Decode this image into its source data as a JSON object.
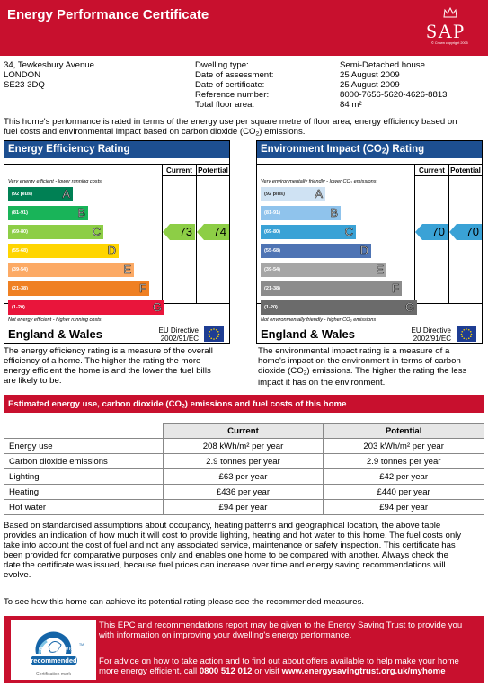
{
  "header": {
    "title": "Energy Performance Certificate",
    "logo_text": "SAP",
    "logo_copyright": "© Crown copyright 2005"
  },
  "property": {
    "address_lines": [
      "34, Tewkesbury Avenue",
      "LONDON",
      "SE23 3DQ"
    ],
    "fields": [
      {
        "label": "Dwelling type:",
        "value": "Semi-Detached house"
      },
      {
        "label": "Date of assessment:",
        "value": "25 August 2009"
      },
      {
        "label": "Date of certificate:",
        "value": "25 August 2009"
      },
      {
        "label": "Reference number:",
        "value": "8000-7656-5620-4626-8813"
      },
      {
        "label": "Total floor area:",
        "value": "84 m²"
      }
    ]
  },
  "intro": {
    "line1": "This home's performance is rated in terms of the energy use per square metre of floor area, energy efficiency based on",
    "line2_pre": "fuel costs and environmental impact based on carbon dioxide (CO",
    "line2_sub": "2",
    "line2_post": ") emissions."
  },
  "efficiency_chart": {
    "title": "Energy Efficiency Rating",
    "col_current": "Current",
    "col_potential": "Potential",
    "top_note": "Very energy efficient - lower running costs",
    "bottom_note": "Not energy efficient - higher running costs",
    "bands": [
      {
        "range": "(92 plus)",
        "letter": "A",
        "color": "#008054"
      },
      {
        "range": "(81-91)",
        "letter": "B",
        "color": "#19b459"
      },
      {
        "range": "(69-80)",
        "letter": "C",
        "color": "#8dce46"
      },
      {
        "range": "(55-68)",
        "letter": "D",
        "color": "#ffd500"
      },
      {
        "range": "(39-54)",
        "letter": "E",
        "color": "#fcaa65"
      },
      {
        "range": "(21-38)",
        "letter": "F",
        "color": "#ef8023"
      },
      {
        "range": "(1-20)",
        "letter": "G",
        "color": "#e9153b"
      }
    ],
    "current": 73,
    "potential": 74,
    "arrow_color": "#8dce46",
    "region": "England & Wales",
    "directive_line1": "EU Directive",
    "directive_line2": "2002/91/EC",
    "description": [
      "The energy efficiency rating is a measure of the overall",
      "efficiency of a home. The higher the rating the more",
      "energy efficient the home is and the lower the fuel bills",
      "are likely to be."
    ]
  },
  "environment_chart": {
    "title_pre": "Environment Impact (CO",
    "title_sub": "2",
    "title_post": ") Rating",
    "col_current": "Current",
    "col_potential": "Potential",
    "top_note_pre": "Very environmentally friendly - lower CO",
    "top_note_sub": "2",
    "top_note_post": " emissions",
    "bottom_note_pre": "Not environmentally friendly - higher CO",
    "bottom_note_sub": "2",
    "bottom_note_post": " emissions",
    "bands": [
      {
        "range": "(92 plus)",
        "letter": "A",
        "color": "#cfe2f3"
      },
      {
        "range": "(81-91)",
        "letter": "B",
        "color": "#8fc3ec"
      },
      {
        "range": "(69-80)",
        "letter": "C",
        "color": "#3aa2d6"
      },
      {
        "range": "(55-68)",
        "letter": "D",
        "color": "#4e74b4"
      },
      {
        "range": "(39-54)",
        "letter": "E",
        "color": "#a6a6a6"
      },
      {
        "range": "(21-38)",
        "letter": "F",
        "color": "#8c8c8c"
      },
      {
        "range": "(1-20)",
        "letter": "G",
        "color": "#6b6b6b"
      }
    ],
    "current": 70,
    "potential": 70,
    "arrow_color": "#3aa2d6",
    "region": "England & Wales",
    "directive_line1": "EU Directive",
    "directive_line2": "2002/91/EC",
    "description": [
      "The environmental impact rating is a measure of a",
      "home's impact on the environment in terms of carbon",
      [
        "dioxide (CO",
        "2",
        ") emissions. The higher the rating the less"
      ],
      "impact it has on the environment."
    ]
  },
  "costs": {
    "title_pre": "Estimated energy use, carbon dioxide (CO",
    "title_sub": "2",
    "title_post": ") emissions and fuel costs of this home",
    "col_current": "Current",
    "col_potential": "Potential",
    "rows": [
      {
        "label": "Energy use",
        "current": "208 kWh/m² per year",
        "potential": "203 kWh/m² per year"
      },
      {
        "label": "Carbon dioxide emissions",
        "current": "2.9 tonnes per year",
        "potential": "2.9 tonnes per year"
      },
      {
        "label": "Lighting",
        "current": "£63 per year",
        "potential": "£42 per year"
      },
      {
        "label": "Heating",
        "current": "£436 per year",
        "potential": "£440 per year"
      },
      {
        "label": "Hot water",
        "current": "£94 per year",
        "potential": "£94 per year"
      }
    ]
  },
  "explanation": [
    "Based on standardised assumptions about occupancy, heating patterns and geographical location, the above table",
    "provides an indication of how much it will cost to provide lighting, heating and hot water to this home. The fuel costs only",
    "take into account the cost of fuel and not any associated service, maintenance or safety inspection. This certificate has",
    "been provided for comparative purposes only and enables one home to be compared with another. Always check the",
    "date the certificate was issued, because fuel prices can increase over time and energy saving recommendations will",
    "evolve."
  ],
  "recommend_note": "To see how this home can achieve its potential rating please see the recommended measures.",
  "footer": {
    "para1": [
      "This EPC and recommendations report may be given to the Energy Saving Trust to provide you",
      "with information on improving your dwelling's energy performance."
    ],
    "para2_line1": "For advice on how to take action and to find out about offers available to help make your home",
    "para2_line2_pre": "more energy efficient, call ",
    "phone": "0800 512 012",
    "para2_line2_mid": " or visit ",
    "website": "www.energysavingtrust.org.uk/myhome",
    "logo_word1": "energy",
    "logo_word2": "saving",
    "logo_tm": "TM",
    "logo_badge": "recommended",
    "logo_caption": "Certification mark"
  }
}
